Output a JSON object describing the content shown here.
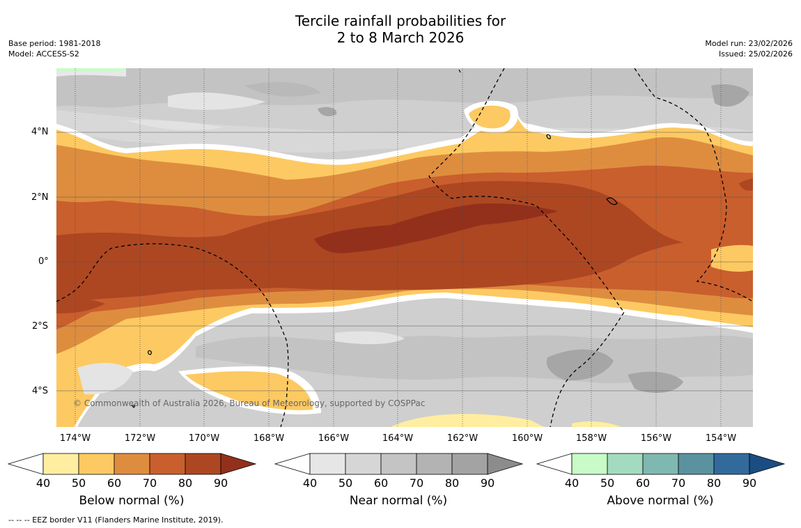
{
  "title": {
    "line1": "Tercile rainfall probabilities for",
    "line2": "2 to 8 March 2026"
  },
  "meta_left": {
    "base_period": "Base period: 1981-2018",
    "model": "Model: ACCESS-S2"
  },
  "meta_right": {
    "model_run": "Model run: 23/02/2026",
    "issued": "Issued: 25/02/2026"
  },
  "map": {
    "copyright": "© Commonwealth of Australia 2026, Bureau of Meteorology, supported by COSPPac",
    "lon_labels": [
      "174°W",
      "172°W",
      "170°W",
      "168°W",
      "166°W",
      "164°W",
      "162°W",
      "160°W",
      "158°W",
      "156°W",
      "154°W"
    ],
    "lat_labels": [
      "4°N",
      "2°N",
      "0°",
      "2°S",
      "4°S"
    ]
  },
  "colorbars": [
    {
      "title": "Below normal (%)",
      "ticks": [
        "40",
        "50",
        "60",
        "70",
        "80",
        "90"
      ],
      "colors": [
        "#ffffff",
        "#ffeea0",
        "#fdc962",
        "#de8d3f",
        "#c95f2d",
        "#ad4722",
        "#93301c"
      ]
    },
    {
      "title": "Near normal (%)",
      "ticks": [
        "40",
        "50",
        "60",
        "70",
        "80",
        "90"
      ],
      "colors": [
        "#ffffff",
        "#e6e6e6",
        "#d6d6d6",
        "#c4c4c4",
        "#b3b3b3",
        "#a3a3a3",
        "#8c8c8c"
      ]
    },
    {
      "title": "Above normal (%)",
      "ticks": [
        "40",
        "50",
        "60",
        "70",
        "80",
        "90"
      ],
      "colors": [
        "#ffffff",
        "#c8fbc8",
        "#a3dbc0",
        "#7fb8b0",
        "#5b92a0",
        "#336a9c",
        "#1a4e82"
      ]
    }
  ],
  "footnote": "--  --  -- EEZ border V11 (Flanders Marine Institute, 2019)."
}
